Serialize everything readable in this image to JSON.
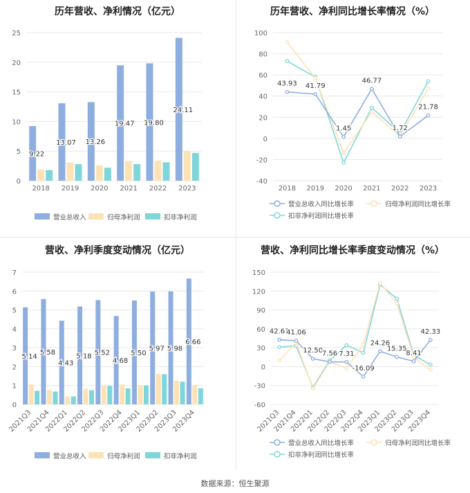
{
  "source_text": "数据来源：恒生聚源",
  "colors": {
    "revenue": "#8eaee0",
    "net_profit": "#fde2b5",
    "deducted_profit": "#7fd6da",
    "grid": "#e8e8e8",
    "axis_text": "#666666"
  },
  "chart_data": [
    {
      "type": "bar",
      "title": "历年营收、净利情况（亿元）",
      "categories": [
        "2018",
        "2019",
        "2020",
        "2021",
        "2022",
        "2023"
      ],
      "ylim": [
        0,
        25
      ],
      "yticks": [
        0,
        5,
        10,
        15,
        20,
        25
      ],
      "series": [
        {
          "name": "营业总收入",
          "values": [
            9.22,
            13.07,
            13.26,
            19.47,
            19.8,
            24.11
          ],
          "labels": [
            "9.22",
            "13.07",
            "13.26",
            "19.47",
            "19.80",
            "24.11"
          ]
        },
        {
          "name": "归母净利润",
          "values": [
            1.9,
            3.1,
            2.6,
            3.3,
            3.4,
            5.0
          ]
        },
        {
          "name": "扣非净利润",
          "values": [
            1.8,
            2.8,
            2.2,
            2.8,
            3.1,
            4.7
          ]
        }
      ],
      "legend_position": "bottom"
    },
    {
      "type": "line",
      "title": "历年营收、净利同比增长率情况（%）",
      "categories": [
        "2018",
        "2019",
        "2020",
        "2021",
        "2022",
        "2023"
      ],
      "ylim": [
        -40,
        100
      ],
      "yticks": [
        -40,
        -20,
        0,
        20,
        40,
        60,
        80,
        100
      ],
      "series": [
        {
          "name": "营业总收入同比增长率",
          "values": [
            43.93,
            41.79,
            1.45,
            46.77,
            1.72,
            21.78
          ],
          "labels": [
            "43.93",
            "41.79",
            "1.45",
            "46.77",
            "1.72",
            "21.78"
          ]
        },
        {
          "name": "归母净利润同比增长率",
          "values": [
            91,
            57,
            -14,
            25,
            2,
            47
          ]
        },
        {
          "name": "扣非净利润同比增长率",
          "values": [
            73,
            58,
            -23,
            29,
            5,
            54
          ]
        }
      ],
      "legend_position": "bottom"
    },
    {
      "type": "bar",
      "title": "营收、净利季度变动情况（亿元）",
      "categories": [
        "2021Q3",
        "2021Q4",
        "2022Q1",
        "2022Q2",
        "2022Q3",
        "2022Q4",
        "2023Q1",
        "2023Q2",
        "2023Q3",
        "2023Q4"
      ],
      "ylim": [
        0,
        7
      ],
      "yticks": [
        0,
        1,
        2,
        3,
        4,
        5,
        6,
        7
      ],
      "series": [
        {
          "name": "营业总收入",
          "values": [
            5.14,
            5.58,
            4.43,
            5.18,
            5.52,
            4.68,
            5.5,
            5.97,
            5.98,
            6.66
          ],
          "labels": [
            "5.14",
            "5.58",
            "4.43",
            "5.18",
            "5.52",
            "4.68",
            "5.50",
            "5.97",
            "5.98",
            "6.66"
          ]
        },
        {
          "name": "归母净利润",
          "values": [
            1.05,
            0.75,
            0.42,
            0.82,
            1.0,
            1.05,
            1.0,
            1.62,
            1.25,
            1.0
          ]
        },
        {
          "name": "扣非净利润",
          "values": [
            0.72,
            0.68,
            0.42,
            0.75,
            0.98,
            0.85,
            1.0,
            1.6,
            1.2,
            0.85
          ]
        }
      ],
      "legend_position": "bottom"
    },
    {
      "type": "line",
      "title": "营收、净利同比增长率季度变动情况（%）",
      "categories": [
        "2021Q3",
        "2021Q4",
        "2022Q1",
        "2022Q2",
        "2022Q3",
        "2022Q4",
        "2023Q1",
        "2023Q2",
        "2023Q3",
        "2023Q4"
      ],
      "ylim": [
        -60,
        150
      ],
      "yticks": [
        -60,
        -30,
        0,
        30,
        60,
        90,
        120,
        150
      ],
      "series": [
        {
          "name": "营业总收入同比增长率",
          "values": [
            42.63,
            41.06,
            12.5,
            7.56,
            7.31,
            -16.09,
            24.26,
            15.35,
            8.41,
            42.33
          ],
          "labels": [
            "42.63",
            "41.06",
            "12.50",
            "7.56",
            "7.31",
            "-16.09",
            "24.26",
            "15.35",
            "8.41",
            "42.33"
          ]
        },
        {
          "name": "归母净利润同比增长率",
          "values": [
            10,
            38,
            -35,
            8,
            -3,
            35,
            133,
            100,
            15,
            -5
          ]
        },
        {
          "name": "扣非净利润同比增长率",
          "values": [
            31,
            33,
            -33,
            10,
            34,
            22,
            130,
            108,
            18,
            3
          ]
        }
      ],
      "legend_position": "bottom"
    }
  ]
}
